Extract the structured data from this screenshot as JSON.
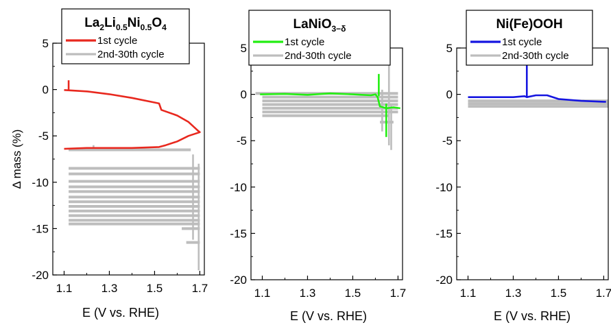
{
  "chart_data": [
    {
      "type": "line",
      "title_parts": [
        {
          "t": "La",
          "s": "n"
        },
        {
          "t": "2",
          "s": "sub"
        },
        {
          "t": "Li",
          "s": "n"
        },
        {
          "t": "0.5",
          "s": "sub"
        },
        {
          "t": "Ni",
          "s": "n"
        },
        {
          "t": "0.5",
          "s": "sub"
        },
        {
          "t": "O",
          "s": "n"
        },
        {
          "t": "4",
          "s": "sub"
        }
      ],
      "xlabel": "E (V vs. RHE)",
      "ylabel": "Δ mass (%)",
      "xlim": [
        1.05,
        1.72
      ],
      "ylim": [
        -20,
        5
      ],
      "xticks": [
        "1.1",
        "1.3",
        "1.5",
        "1.7"
      ],
      "yticks": [
        "5",
        "0",
        "-5",
        "-10",
        "-15",
        "-20"
      ],
      "grid": false,
      "legend_position": "top-right",
      "series": [
        {
          "name": "2nd-30th cycle",
          "color": "#bdbdbd",
          "bands": [
            {
              "y": -6.5,
              "x0": 1.12,
              "x1": 1.66
            },
            {
              "y": -8.5,
              "x0": 1.12,
              "x1": 1.7
            },
            {
              "y": -9.1,
              "x0": 1.12,
              "x1": 1.7
            },
            {
              "y": -9.9,
              "x0": 1.12,
              "x1": 1.7
            },
            {
              "y": -10.5,
              "x0": 1.12,
              "x1": 1.7
            },
            {
              "y": -11.0,
              "x0": 1.12,
              "x1": 1.7
            },
            {
              "y": -11.6,
              "x0": 1.12,
              "x1": 1.7
            },
            {
              "y": -12.1,
              "x0": 1.12,
              "x1": 1.7
            },
            {
              "y": -12.6,
              "x0": 1.12,
              "x1": 1.7
            },
            {
              "y": -13.1,
              "x0": 1.12,
              "x1": 1.7
            },
            {
              "y": -13.6,
              "x0": 1.12,
              "x1": 1.7
            },
            {
              "y": -14.1,
              "x0": 1.12,
              "x1": 1.7
            },
            {
              "y": -14.5,
              "x0": 1.12,
              "x1": 1.7
            },
            {
              "y": -15.0,
              "x0": 1.62,
              "x1": 1.7
            },
            {
              "y": -16.5,
              "x0": 1.64,
              "x1": 1.7
            }
          ],
          "spikes": [
            {
              "x": 1.695,
              "y0": -8.0,
              "y1": -19.5
            },
            {
              "x": 1.67,
              "y0": -7.0,
              "y1": -16.2
            },
            {
              "x": 1.23,
              "y0": -6.6,
              "y1": -6.0
            }
          ]
        },
        {
          "name": "1st cycle",
          "color": "#e8281e",
          "x": [
            1.1,
            1.2,
            1.3,
            1.4,
            1.5,
            1.52,
            1.53,
            1.6,
            1.65,
            1.69,
            1.7,
            1.65,
            1.6,
            1.55,
            1.52,
            1.4,
            1.3,
            1.2,
            1.1
          ],
          "y": [
            -0.05,
            -0.2,
            -0.5,
            -0.9,
            -1.4,
            -1.5,
            -2.2,
            -2.8,
            -3.5,
            -4.4,
            -4.6,
            -5.0,
            -5.6,
            -6.0,
            -6.2,
            -6.3,
            -6.3,
            -6.3,
            -6.4
          ],
          "spikes": [
            {
              "x": 1.12,
              "y0": -0.1,
              "y1": 1.0
            }
          ]
        }
      ]
    },
    {
      "type": "line",
      "title_parts": [
        {
          "t": "LaNiO",
          "s": "n"
        },
        {
          "t": "3−δ",
          "s": "sub"
        }
      ],
      "xlabel": "E (V vs. RHE)",
      "ylabel": "",
      "xlim": [
        1.05,
        1.72
      ],
      "ylim": [
        -20,
        5
      ],
      "xticks": [
        "1.1",
        "1.3",
        "1.5",
        "1.7"
      ],
      "yticks": [
        "5",
        "0",
        "-5",
        "-10",
        "-15",
        "-20"
      ],
      "grid": false,
      "legend_position": "top-right",
      "series": [
        {
          "name": "2nd-30th cycle",
          "color": "#bdbdbd",
          "bands": [
            {
              "y": 0.1,
              "x0": 1.07,
              "x1": 1.7
            },
            {
              "y": -0.3,
              "x0": 1.1,
              "x1": 1.7
            },
            {
              "y": -0.7,
              "x0": 1.1,
              "x1": 1.7
            },
            {
              "y": -1.1,
              "x0": 1.1,
              "x1": 1.7
            },
            {
              "y": -1.5,
              "x0": 1.1,
              "x1": 1.7
            },
            {
              "y": -1.9,
              "x0": 1.1,
              "x1": 1.7
            },
            {
              "y": -2.3,
              "x0": 1.1,
              "x1": 1.66
            },
            {
              "y": -3.0,
              "x0": 1.62,
              "x1": 1.68
            }
          ],
          "spikes": [
            {
              "x": 1.66,
              "y0": 3.5,
              "y1": -5.5
            },
            {
              "x": 1.67,
              "y0": -1.0,
              "y1": -6.0
            },
            {
              "x": 1.63,
              "y0": 0.5,
              "y1": -4.0
            }
          ]
        },
        {
          "name": "1st cycle",
          "color": "#22ee11",
          "x": [
            1.09,
            1.2,
            1.3,
            1.4,
            1.5,
            1.58,
            1.6,
            1.61,
            1.62,
            1.65,
            1.68,
            1.71
          ],
          "y": [
            0.0,
            0.05,
            -0.05,
            0.1,
            0.0,
            -0.1,
            0.0,
            -0.3,
            -1.3,
            -1.5,
            -1.4,
            -1.5
          ],
          "spikes": [
            {
              "x": 1.615,
              "y0": -0.2,
              "y1": 2.2
            },
            {
              "x": 1.648,
              "y0": -1.0,
              "y1": -4.6
            }
          ]
        }
      ]
    },
    {
      "type": "line",
      "title_parts": [
        {
          "t": "Ni(Fe)OOH",
          "s": "n"
        }
      ],
      "xlabel": "E (V vs. RHE)",
      "ylabel": "",
      "xlim": [
        1.05,
        1.72
      ],
      "ylim": [
        -20,
        5
      ],
      "xticks": [
        "1.1",
        "1.3",
        "1.5",
        "1.7"
      ],
      "yticks": [
        "5",
        "0",
        "-5",
        "-10",
        "-15",
        "-20"
      ],
      "grid": false,
      "legend_position": "top-right",
      "series": [
        {
          "name": "2nd-30th cycle",
          "color": "#bdbdbd",
          "bands": [
            {
              "y": -0.7,
              "x0": 1.1,
              "x1": 1.72
            },
            {
              "y": -1.0,
              "x0": 1.1,
              "x1": 1.72
            },
            {
              "y": -1.3,
              "x0": 1.1,
              "x1": 1.72
            }
          ],
          "spikes": []
        },
        {
          "name": "1st cycle",
          "color": "#1515e0",
          "x": [
            1.1,
            1.2,
            1.3,
            1.35,
            1.36,
            1.4,
            1.45,
            1.5,
            1.6,
            1.7,
            1.71
          ],
          "y": [
            -0.3,
            -0.3,
            -0.3,
            -0.2,
            -0.3,
            -0.1,
            -0.1,
            -0.5,
            -0.7,
            -0.8,
            -0.8
          ],
          "spikes": [
            {
              "x": 1.36,
              "y0": -0.3,
              "y1": 3.3
            }
          ]
        }
      ]
    }
  ]
}
